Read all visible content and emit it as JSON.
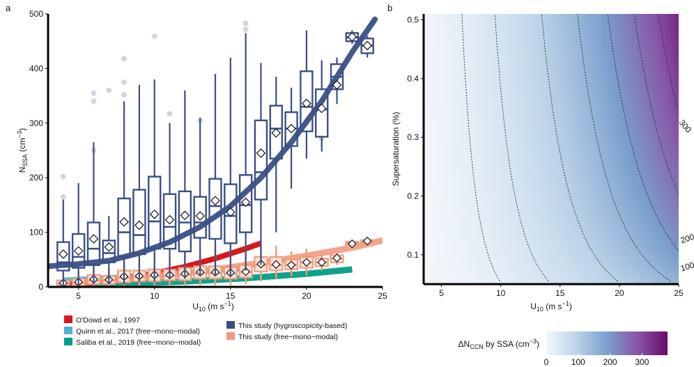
{
  "panel_labels": {
    "a": "a",
    "b": "b"
  },
  "chart_data": [
    {
      "type": "box",
      "panel": "a",
      "xlabel": "U",
      "xlabel_sub": "10",
      "xlabel_unit": " (m s",
      "xlabel_unit_sup": "−1",
      "xlabel_unit_end": ")",
      "ylabel": "N",
      "ylabel_sub": "SSA",
      "ylabel_unit": " (cm",
      "ylabel_unit_sup": "−3",
      "ylabel_unit_end": ")",
      "xlim": [
        3,
        25
      ],
      "ylim": [
        0,
        500
      ],
      "xticks": [
        "5",
        "10",
        "15",
        "20",
        "25"
      ],
      "yticks": [
        "0",
        "100",
        "200",
        "300",
        "400",
        "500"
      ],
      "colors": {
        "odowd": "#d7191c",
        "quinn": "#4eb3d3",
        "saliba": "#009e85",
        "hygro": "#3b4f86",
        "free": "#ef9a7c"
      },
      "legend": [
        {
          "label": "O'Dowd et al., 1997",
          "color": "#d7191c"
        },
        {
          "label": "Quinn et al., 2017 (free−mono−modal)",
          "color": "#4eb3d3"
        },
        {
          "label": "Saliba et al., 2019 (free−mono−modal)",
          "color": "#009e85"
        },
        {
          "label": "This study (hygroscopicity-based)",
          "color": "#3b4f86"
        },
        {
          "label": "This study (free−mono−modal)",
          "color": "#ef9a7c"
        }
      ],
      "hygro_boxes": [
        {
          "x": 4,
          "wlo": 0,
          "q1": 30,
          "median": 45,
          "q3": 82,
          "whi": 160,
          "mean": 60,
          "outliers": [
            165,
            202
          ]
        },
        {
          "x": 5,
          "wlo": 0,
          "q1": 35,
          "median": 55,
          "q3": 97,
          "whi": 190,
          "mean": 66,
          "outliers": []
        },
        {
          "x": 6,
          "wlo": 5,
          "q1": 40,
          "median": 70,
          "q3": 118,
          "whi": 265,
          "mean": 88,
          "outliers": [
            250,
            340,
            355
          ]
        },
        {
          "x": 7,
          "wlo": 5,
          "q1": 45,
          "median": 62,
          "q3": 85,
          "whi": 130,
          "mean": 73,
          "outliers": [
            360
          ]
        },
        {
          "x": 8,
          "wlo": 5,
          "q1": 55,
          "median": 100,
          "q3": 162,
          "whi": 340,
          "mean": 119,
          "outliers": [
            352,
            375,
            418
          ]
        },
        {
          "x": 9,
          "wlo": 10,
          "q1": 60,
          "median": 95,
          "q3": 178,
          "whi": 370,
          "mean": 113,
          "outliers": []
        },
        {
          "x": 10,
          "wlo": 10,
          "q1": 70,
          "median": 120,
          "q3": 202,
          "whi": 380,
          "mean": 133,
          "outliers": [
            459
          ]
        },
        {
          "x": 11,
          "wlo": 15,
          "q1": 70,
          "median": 110,
          "q3": 170,
          "whi": 300,
          "mean": 123,
          "outliers": [
            317
          ]
        },
        {
          "x": 12,
          "wlo": 15,
          "q1": 65,
          "median": 118,
          "q3": 175,
          "whi": 360,
          "mean": 131,
          "outliers": []
        },
        {
          "x": 13,
          "wlo": 20,
          "q1": 90,
          "median": 118,
          "q3": 165,
          "whi": 310,
          "mean": 130,
          "outliers": [
            305
          ]
        },
        {
          "x": 14,
          "wlo": 20,
          "q1": 88,
          "median": 148,
          "q3": 198,
          "whi": 390,
          "mean": 158,
          "outliers": []
        },
        {
          "x": 15,
          "wlo": 20,
          "q1": 80,
          "median": 130,
          "q3": 188,
          "whi": 420,
          "mean": 137,
          "outliers": []
        },
        {
          "x": 16,
          "wlo": 30,
          "q1": 100,
          "median": 150,
          "q3": 205,
          "whi": 465,
          "mean": 155,
          "outliers": [
            472,
            483
          ]
        },
        {
          "x": 17,
          "wlo": 40,
          "q1": 160,
          "median": 210,
          "q3": 305,
          "whi": 410,
          "mean": 245,
          "outliers": []
        },
        {
          "x": 18,
          "wlo": 100,
          "q1": 235,
          "median": 290,
          "q3": 332,
          "whi": 385,
          "mean": 282,
          "outliers": []
        },
        {
          "x": 19,
          "wlo": 180,
          "q1": 258,
          "median": 290,
          "q3": 320,
          "whi": 365,
          "mean": 290,
          "outliers": []
        },
        {
          "x": 20,
          "wlo": 235,
          "q1": 285,
          "median": 330,
          "q3": 395,
          "whi": 470,
          "mean": 336,
          "outliers": []
        },
        {
          "x": 21,
          "wlo": 248,
          "q1": 275,
          "median": 325,
          "q3": 362,
          "whi": 415,
          "mean": 327,
          "outliers": [
            272
          ]
        },
        {
          "x": 22,
          "wlo": 335,
          "q1": 362,
          "median": 385,
          "q3": 408,
          "whi": 420,
          "mean": 370,
          "outliers": []
        },
        {
          "x": 23,
          "wlo": 445,
          "q1": 450,
          "median": 457,
          "q3": 465,
          "whi": 470,
          "mean": 458,
          "outliers": []
        },
        {
          "x": 24,
          "wlo": 420,
          "q1": 428,
          "median": 442,
          "q3": 455,
          "whi": 460,
          "mean": 442,
          "outliers": []
        }
      ],
      "free_boxes": [
        {
          "x": 4,
          "wlo": 0,
          "q1": 2,
          "median": 6,
          "q3": 12,
          "whi": 20,
          "mean": 7
        },
        {
          "x": 5,
          "wlo": 0,
          "q1": 3,
          "median": 8,
          "q3": 15,
          "whi": 25,
          "mean": 9
        },
        {
          "x": 6,
          "wlo": 0,
          "q1": 5,
          "median": 12,
          "q3": 22,
          "whi": 40,
          "mean": 14
        },
        {
          "x": 7,
          "wlo": 0,
          "q1": 5,
          "median": 12,
          "q3": 20,
          "whi": 35,
          "mean": 13
        },
        {
          "x": 8,
          "wlo": 2,
          "q1": 8,
          "median": 17,
          "q3": 30,
          "whi": 50,
          "mean": 19
        },
        {
          "x": 9,
          "wlo": 2,
          "q1": 10,
          "median": 18,
          "q3": 30,
          "whi": 55,
          "mean": 20
        },
        {
          "x": 10,
          "wlo": 2,
          "q1": 10,
          "median": 20,
          "q3": 32,
          "whi": 60,
          "mean": 22
        },
        {
          "x": 11,
          "wlo": 3,
          "q1": 12,
          "median": 20,
          "q3": 32,
          "whi": 55,
          "mean": 22
        },
        {
          "x": 12,
          "wlo": 3,
          "q1": 12,
          "median": 22,
          "q3": 35,
          "whi": 65,
          "mean": 24
        },
        {
          "x": 13,
          "wlo": 3,
          "q1": 15,
          "median": 25,
          "q3": 38,
          "whi": 65,
          "mean": 27
        },
        {
          "x": 14,
          "wlo": 3,
          "q1": 15,
          "median": 25,
          "q3": 38,
          "whi": 75,
          "mean": 27
        },
        {
          "x": 15,
          "wlo": 3,
          "q1": 15,
          "median": 24,
          "q3": 36,
          "whi": 70,
          "mean": 26
        },
        {
          "x": 16,
          "wlo": 5,
          "q1": 17,
          "median": 27,
          "q3": 40,
          "whi": 75,
          "mean": 28
        },
        {
          "x": 17,
          "wlo": 10,
          "q1": 28,
          "median": 40,
          "q3": 55,
          "whi": 80,
          "mean": 42
        },
        {
          "x": 18,
          "wlo": 15,
          "q1": 30,
          "median": 40,
          "q3": 55,
          "whi": 75,
          "mean": 41
        },
        {
          "x": 19,
          "wlo": 20,
          "q1": 32,
          "median": 40,
          "q3": 50,
          "whi": 65,
          "mean": 40
        },
        {
          "x": 20,
          "wlo": 22,
          "q1": 35,
          "median": 45,
          "q3": 55,
          "whi": 70,
          "mean": 45
        },
        {
          "x": 21,
          "wlo": 30,
          "q1": 38,
          "median": 45,
          "q3": 52,
          "whi": 60,
          "mean": 45
        },
        {
          "x": 22,
          "wlo": 40,
          "q1": 45,
          "median": 52,
          "q3": 58,
          "whi": 62,
          "mean": 53
        },
        {
          "x": 23,
          "wlo": 72,
          "q1": 76,
          "median": 80,
          "q3": 83,
          "whi": 86,
          "mean": 79
        },
        {
          "x": 24,
          "wlo": 78,
          "q1": 81,
          "median": 83,
          "q3": 86,
          "whi": 88,
          "mean": 84
        }
      ],
      "fits": {
        "hygro": {
          "x": [
            3,
            5,
            7,
            9,
            11,
            13,
            15,
            17,
            19,
            21,
            23,
            24.5
          ],
          "y": [
            38,
            42,
            48,
            62,
            82,
            110,
            148,
            200,
            265,
            340,
            430,
            490
          ]
        },
        "free": {
          "x": [
            5,
            8,
            11,
            14,
            17,
            20,
            23,
            25
          ],
          "y": [
            8,
            14,
            22,
            32,
            44,
            57,
            72,
            85
          ]
        },
        "odowd": {
          "x": [
            4,
            6,
            8,
            10,
            12,
            14,
            16,
            17
          ],
          "y": [
            3,
            8,
            15,
            25,
            37,
            52,
            70,
            80
          ]
        },
        "quinn": {
          "x": [
            4,
            6,
            8,
            10,
            12,
            14,
            16
          ],
          "y": [
            12,
            15,
            18,
            22,
            26,
            30,
            34
          ]
        },
        "saliba": {
          "x": [
            4,
            8,
            12,
            16,
            20,
            23
          ],
          "y": [
            2,
            6,
            10,
            16,
            24,
            32
          ]
        }
      }
    },
    {
      "type": "heatmap",
      "panel": "b",
      "xlabel": "U",
      "xlabel_sub": "10",
      "xlabel_unit": " (m s",
      "xlabel_unit_sup": "−1",
      "xlabel_unit_end": ")",
      "ylabel": "Supersaturation (%)",
      "xlim": [
        3.5,
        25
      ],
      "ylim": [
        0.05,
        0.51
      ],
      "xticks": [
        "5",
        "10",
        "15",
        "20",
        "25"
      ],
      "yticks": [
        "0.1",
        "0.2",
        "0.3",
        "0.4",
        "0.5"
      ],
      "contour_labels": [
        "100",
        "200",
        "300"
      ],
      "colorbar": {
        "title_pre": "ΔN",
        "title_sub": "CCN",
        "title_post": " by SSA (cm",
        "title_sup": "−3",
        "title_end": ")",
        "ticks": [
          "0",
          "100",
          "200",
          "300"
        ],
        "range": [
          0,
          380
        ],
        "colors": [
          "#f3f7fb",
          "#bcd3e8",
          "#7b9fcd",
          "#8857a8",
          "#6a0a6b"
        ]
      }
    }
  ]
}
